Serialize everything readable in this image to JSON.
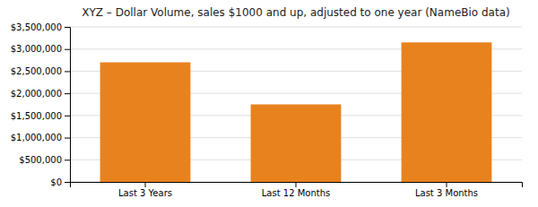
{
  "chart_data": {
    "type": "bar",
    "title": "XYZ – Dollar Volume, sales $1000 and up, adjusted to one year (NameBio data)",
    "categories": [
      "Last 3 Years",
      "Last 12 Months",
      "Last 3 Months"
    ],
    "values": [
      2700000,
      1750000,
      3150000
    ],
    "color": "#E8821E",
    "ylim": [
      0,
      3500000
    ],
    "yticks": [
      {
        "value": 0,
        "label": "$0"
      },
      {
        "value": 500000,
        "label": "$500,000"
      },
      {
        "value": 1000000,
        "label": "$1,000,000"
      },
      {
        "value": 1500000,
        "label": "$1,500,000"
      },
      {
        "value": 2000000,
        "label": "$2,000,000"
      },
      {
        "value": 2500000,
        "label": "$2,500,000"
      },
      {
        "value": 3000000,
        "label": "$3,000,000"
      },
      {
        "value": 3500000,
        "label": "$3,500,000"
      }
    ],
    "grid": true
  }
}
